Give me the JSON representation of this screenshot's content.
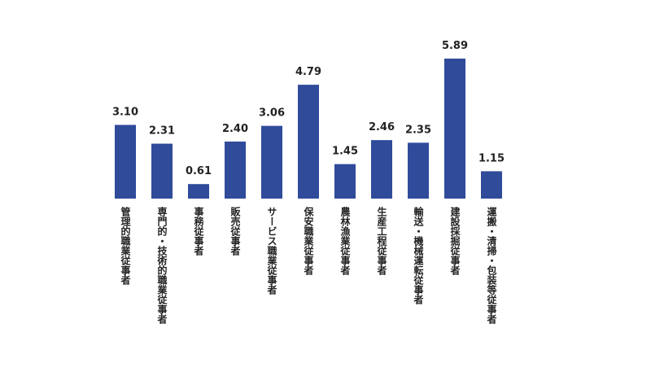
{
  "chart_data": {
    "type": "bar",
    "categories": [
      "管理的職業従事者",
      "専門的・技術的職業従事者",
      "事務従事者",
      "販売従事者",
      "サービス職業従事者",
      "保安職業従事者",
      "農林漁業従事者",
      "生産工程従事者",
      "輸送・機械運転従事者",
      "建設採掘従事者",
      "運搬・清掃・包装等従事者"
    ],
    "values": [
      3.1,
      2.31,
      0.61,
      2.4,
      3.06,
      4.79,
      1.45,
      2.46,
      2.35,
      5.89,
      1.15
    ],
    "value_labels": [
      "3.10",
      "2.31",
      "0.61",
      "2.40",
      "3.06",
      "4.79",
      "1.45",
      "2.46",
      "2.35",
      "5.89",
      "1.15"
    ],
    "color": "#2f4b9a"
  }
}
